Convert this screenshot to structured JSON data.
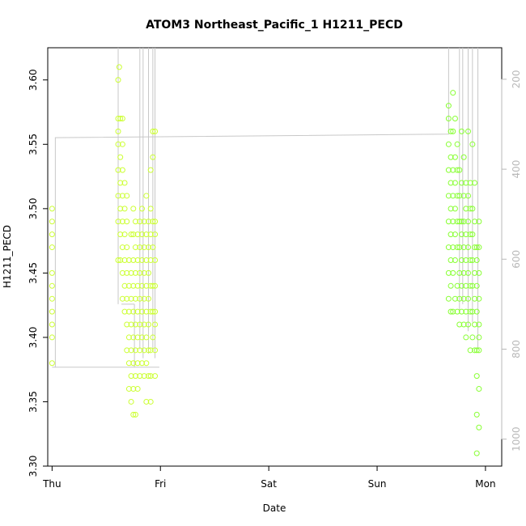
{
  "chart_data": {
    "type": "scatter",
    "title": "ATOM3 Northeast_Pacific_1 H1211_PECD",
    "xlabel": "Date",
    "ylabel": "H1211_PECD",
    "xlim": [
      -0.04,
      4.15
    ],
    "ylim": [
      3.3,
      3.625
    ],
    "x_ticks": [
      {
        "label": "Thu",
        "value": 0
      },
      {
        "label": "Fri",
        "value": 1
      },
      {
        "label": "Sat",
        "value": 2
      },
      {
        "label": "Sun",
        "value": 3
      },
      {
        "label": "Mon",
        "value": 4
      }
    ],
    "y_ticks": [
      3.3,
      3.35,
      3.4,
      3.45,
      3.5,
      3.55,
      3.6
    ],
    "y_tick_labels": [
      "3.30",
      "3.35",
      "3.40",
      "3.45",
      "3.50",
      "3.55",
      "3.60"
    ],
    "y2_ticks": [
      200,
      400,
      600,
      800,
      1000
    ],
    "y2_lim": [
      1060,
      130
    ],
    "colors": {
      "points_early": "#ccff33",
      "points_late": "#88ff33",
      "profile": "#c8c8c8"
    },
    "profile": [
      {
        "x": 0.0,
        "y2": 840
      },
      {
        "x": 0.03,
        "y2": 840
      },
      {
        "x": 0.03,
        "y2": 330
      },
      {
        "x": 3.66,
        "y2": 322
      },
      {
        "x": 3.66,
        "y2": 130
      }
    ],
    "profile_drops": [
      {
        "x": 0.61,
        "y_from": 130,
        "y_to": 700
      },
      {
        "x": 0.64,
        "y_from": 700,
        "y_to": 700,
        "x2": 0.76
      },
      {
        "x": 0.76,
        "y_from": 700,
        "y_to": 840
      },
      {
        "x": 0.03,
        "y_from": 840,
        "y_to": 840,
        "x2": 0.99
      },
      {
        "x": 0.81,
        "y_from": 130,
        "y_to": 800
      },
      {
        "x": 0.84,
        "y_from": 130,
        "y_to": 820
      },
      {
        "x": 0.89,
        "y_from": 130,
        "y_to": 810
      },
      {
        "x": 0.93,
        "y_from": 130,
        "y_to": 800
      },
      {
        "x": 0.95,
        "y_from": 130,
        "y_to": 820
      },
      {
        "x": 3.76,
        "y_from": 130,
        "y_to": 720
      },
      {
        "x": 3.79,
        "y_from": 130,
        "y_to": 700
      },
      {
        "x": 3.84,
        "y_from": 130,
        "y_to": 760
      },
      {
        "x": 3.88,
        "y_from": 130,
        "y_to": 740
      },
      {
        "x": 3.93,
        "y_from": 130,
        "y_to": 800
      }
    ],
    "series": [
      {
        "name": "",
        "points": [
          [
            0.0,
            3.38
          ],
          [
            0.0,
            3.4
          ],
          [
            0.0,
            3.41
          ],
          [
            0.0,
            3.42
          ],
          [
            0.0,
            3.43
          ],
          [
            0.0,
            3.44
          ],
          [
            0.0,
            3.45
          ],
          [
            0.0,
            3.47
          ],
          [
            0.0,
            3.48
          ],
          [
            0.0,
            3.49
          ],
          [
            0.0,
            3.5
          ],
          [
            0.61,
            3.46
          ],
          [
            0.61,
            3.49
          ],
          [
            0.61,
            3.51
          ],
          [
            0.61,
            3.53
          ],
          [
            0.61,
            3.55
          ],
          [
            0.61,
            3.56
          ],
          [
            0.61,
            3.57
          ],
          [
            0.61,
            3.6
          ],
          [
            0.62,
            3.61
          ],
          [
            0.63,
            3.46
          ],
          [
            0.63,
            3.48
          ],
          [
            0.63,
            3.5
          ],
          [
            0.63,
            3.52
          ],
          [
            0.63,
            3.54
          ],
          [
            0.63,
            3.57
          ],
          [
            0.65,
            3.43
          ],
          [
            0.65,
            3.45
          ],
          [
            0.65,
            3.47
          ],
          [
            0.65,
            3.49
          ],
          [
            0.65,
            3.51
          ],
          [
            0.65,
            3.53
          ],
          [
            0.65,
            3.55
          ],
          [
            0.65,
            3.57
          ],
          [
            0.67,
            3.42
          ],
          [
            0.67,
            3.44
          ],
          [
            0.67,
            3.46
          ],
          [
            0.67,
            3.48
          ],
          [
            0.67,
            3.5
          ],
          [
            0.67,
            3.52
          ],
          [
            0.69,
            3.39
          ],
          [
            0.69,
            3.41
          ],
          [
            0.69,
            3.43
          ],
          [
            0.69,
            3.45
          ],
          [
            0.69,
            3.47
          ],
          [
            0.69,
            3.49
          ],
          [
            0.69,
            3.51
          ],
          [
            0.71,
            3.36
          ],
          [
            0.71,
            3.38
          ],
          [
            0.71,
            3.4
          ],
          [
            0.71,
            3.42
          ],
          [
            0.71,
            3.44
          ],
          [
            0.71,
            3.46
          ],
          [
            0.73,
            3.35
          ],
          [
            0.73,
            3.37
          ],
          [
            0.73,
            3.39
          ],
          [
            0.73,
            3.41
          ],
          [
            0.73,
            3.43
          ],
          [
            0.73,
            3.45
          ],
          [
            0.73,
            3.48
          ],
          [
            0.75,
            3.34
          ],
          [
            0.75,
            3.36
          ],
          [
            0.75,
            3.38
          ],
          [
            0.75,
            3.4
          ],
          [
            0.75,
            3.42
          ],
          [
            0.75,
            3.44
          ],
          [
            0.75,
            3.46
          ],
          [
            0.75,
            3.48
          ],
          [
            0.75,
            3.5
          ],
          [
            0.77,
            3.34
          ],
          [
            0.77,
            3.37
          ],
          [
            0.77,
            3.39
          ],
          [
            0.77,
            3.41
          ],
          [
            0.77,
            3.43
          ],
          [
            0.77,
            3.45
          ],
          [
            0.77,
            3.47
          ],
          [
            0.77,
            3.49
          ],
          [
            0.79,
            3.36
          ],
          [
            0.79,
            3.38
          ],
          [
            0.79,
            3.4
          ],
          [
            0.79,
            3.42
          ],
          [
            0.79,
            3.44
          ],
          [
            0.79,
            3.46
          ],
          [
            0.79,
            3.48
          ],
          [
            0.81,
            3.37
          ],
          [
            0.81,
            3.39
          ],
          [
            0.81,
            3.41
          ],
          [
            0.81,
            3.43
          ],
          [
            0.81,
            3.45
          ],
          [
            0.81,
            3.47
          ],
          [
            0.81,
            3.49
          ],
          [
            0.83,
            3.38
          ],
          [
            0.83,
            3.4
          ],
          [
            0.83,
            3.42
          ],
          [
            0.83,
            3.44
          ],
          [
            0.83,
            3.46
          ],
          [
            0.83,
            3.48
          ],
          [
            0.83,
            3.5
          ],
          [
            0.85,
            3.37
          ],
          [
            0.85,
            3.39
          ],
          [
            0.85,
            3.41
          ],
          [
            0.85,
            3.43
          ],
          [
            0.85,
            3.45
          ],
          [
            0.85,
            3.47
          ],
          [
            0.85,
            3.49
          ],
          [
            0.87,
            3.35
          ],
          [
            0.87,
            3.38
          ],
          [
            0.87,
            3.4
          ],
          [
            0.87,
            3.42
          ],
          [
            0.87,
            3.44
          ],
          [
            0.87,
            3.46
          ],
          [
            0.87,
            3.48
          ],
          [
            0.87,
            3.51
          ],
          [
            0.89,
            3.37
          ],
          [
            0.89,
            3.39
          ],
          [
            0.89,
            3.41
          ],
          [
            0.89,
            3.43
          ],
          [
            0.89,
            3.45
          ],
          [
            0.89,
            3.47
          ],
          [
            0.89,
            3.49
          ],
          [
            0.91,
            3.35
          ],
          [
            0.91,
            3.37
          ],
          [
            0.91,
            3.39
          ],
          [
            0.91,
            3.42
          ],
          [
            0.91,
            3.44
          ],
          [
            0.91,
            3.46
          ],
          [
            0.91,
            3.48
          ],
          [
            0.91,
            3.5
          ],
          [
            0.91,
            3.53
          ],
          [
            0.93,
            3.4
          ],
          [
            0.93,
            3.42
          ],
          [
            0.93,
            3.44
          ],
          [
            0.93,
            3.47
          ],
          [
            0.93,
            3.49
          ],
          [
            0.93,
            3.54
          ],
          [
            0.93,
            3.56
          ],
          [
            0.95,
            3.37
          ],
          [
            0.95,
            3.39
          ],
          [
            0.95,
            3.41
          ],
          [
            0.95,
            3.42
          ],
          [
            0.95,
            3.44
          ],
          [
            0.95,
            3.46
          ],
          [
            0.95,
            3.48
          ],
          [
            0.95,
            3.49
          ],
          [
            0.95,
            3.56
          ]
        ]
      },
      {
        "name": "",
        "points": [
          [
            3.66,
            3.43
          ],
          [
            3.66,
            3.45
          ],
          [
            3.66,
            3.47
          ],
          [
            3.66,
            3.49
          ],
          [
            3.66,
            3.51
          ],
          [
            3.66,
            3.53
          ],
          [
            3.66,
            3.55
          ],
          [
            3.66,
            3.57
          ],
          [
            3.66,
            3.58
          ],
          [
            3.68,
            3.42
          ],
          [
            3.68,
            3.44
          ],
          [
            3.68,
            3.46
          ],
          [
            3.68,
            3.48
          ],
          [
            3.68,
            3.5
          ],
          [
            3.68,
            3.52
          ],
          [
            3.68,
            3.54
          ],
          [
            3.68,
            3.56
          ],
          [
            3.7,
            3.42
          ],
          [
            3.7,
            3.45
          ],
          [
            3.7,
            3.47
          ],
          [
            3.7,
            3.49
          ],
          [
            3.7,
            3.51
          ],
          [
            3.7,
            3.53
          ],
          [
            3.7,
            3.56
          ],
          [
            3.7,
            3.59
          ],
          [
            3.72,
            3.43
          ],
          [
            3.72,
            3.46
          ],
          [
            3.72,
            3.48
          ],
          [
            3.72,
            3.5
          ],
          [
            3.72,
            3.52
          ],
          [
            3.72,
            3.54
          ],
          [
            3.72,
            3.57
          ],
          [
            3.74,
            3.42
          ],
          [
            3.74,
            3.44
          ],
          [
            3.74,
            3.47
          ],
          [
            3.74,
            3.49
          ],
          [
            3.74,
            3.51
          ],
          [
            3.74,
            3.53
          ],
          [
            3.74,
            3.55
          ],
          [
            3.76,
            3.41
          ],
          [
            3.76,
            3.43
          ],
          [
            3.76,
            3.45
          ],
          [
            3.76,
            3.47
          ],
          [
            3.76,
            3.49
          ],
          [
            3.76,
            3.51
          ],
          [
            3.76,
            3.53
          ],
          [
            3.78,
            3.42
          ],
          [
            3.78,
            3.44
          ],
          [
            3.78,
            3.46
          ],
          [
            3.78,
            3.48
          ],
          [
            3.78,
            3.49
          ],
          [
            3.78,
            3.52
          ],
          [
            3.78,
            3.56
          ],
          [
            3.8,
            3.41
          ],
          [
            3.8,
            3.43
          ],
          [
            3.8,
            3.45
          ],
          [
            3.8,
            3.47
          ],
          [
            3.8,
            3.49
          ],
          [
            3.8,
            3.51
          ],
          [
            3.8,
            3.54
          ],
          [
            3.82,
            3.4
          ],
          [
            3.82,
            3.42
          ],
          [
            3.82,
            3.44
          ],
          [
            3.82,
            3.46
          ],
          [
            3.82,
            3.48
          ],
          [
            3.82,
            3.5
          ],
          [
            3.82,
            3.52
          ],
          [
            3.84,
            3.41
          ],
          [
            3.84,
            3.43
          ],
          [
            3.84,
            3.45
          ],
          [
            3.84,
            3.47
          ],
          [
            3.84,
            3.49
          ],
          [
            3.84,
            3.51
          ],
          [
            3.84,
            3.56
          ],
          [
            3.86,
            3.39
          ],
          [
            3.86,
            3.42
          ],
          [
            3.86,
            3.44
          ],
          [
            3.86,
            3.46
          ],
          [
            3.86,
            3.48
          ],
          [
            3.86,
            3.5
          ],
          [
            3.86,
            3.52
          ],
          [
            3.88,
            3.4
          ],
          [
            3.88,
            3.42
          ],
          [
            3.88,
            3.44
          ],
          [
            3.88,
            3.46
          ],
          [
            3.88,
            3.48
          ],
          [
            3.88,
            3.5
          ],
          [
            3.88,
            3.55
          ],
          [
            3.9,
            3.39
          ],
          [
            3.9,
            3.41
          ],
          [
            3.9,
            3.43
          ],
          [
            3.9,
            3.45
          ],
          [
            3.9,
            3.47
          ],
          [
            3.9,
            3.49
          ],
          [
            3.9,
            3.52
          ],
          [
            3.92,
            3.31
          ],
          [
            3.92,
            3.34
          ],
          [
            3.92,
            3.37
          ],
          [
            3.92,
            3.39
          ],
          [
            3.92,
            3.42
          ],
          [
            3.92,
            3.44
          ],
          [
            3.92,
            3.46
          ],
          [
            3.92,
            3.47
          ],
          [
            3.94,
            3.33
          ],
          [
            3.94,
            3.36
          ],
          [
            3.94,
            3.39
          ],
          [
            3.94,
            3.4
          ],
          [
            3.94,
            3.41
          ],
          [
            3.94,
            3.43
          ],
          [
            3.94,
            3.45
          ],
          [
            3.94,
            3.47
          ],
          [
            3.94,
            3.49
          ]
        ]
      }
    ]
  }
}
